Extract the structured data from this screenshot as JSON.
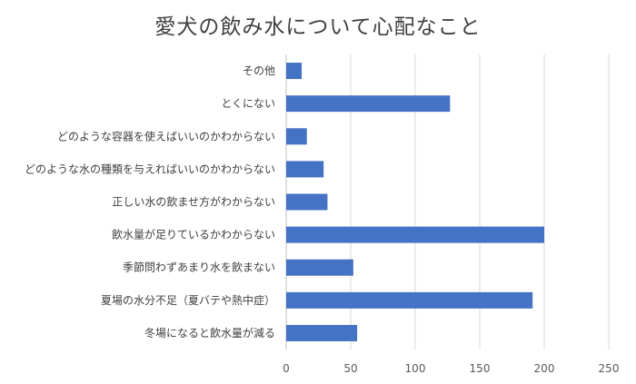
{
  "chart_data": {
    "type": "bar",
    "orientation": "horizontal",
    "title": "愛犬の飲み水について心配なこと",
    "categories": [
      "その他",
      "とくにない",
      "どのような容器を使えばいいのかわからない",
      "どのような水の種類を与えればいいのかわからない",
      "正しい水の飲ませ方がわからない",
      "飲水量が足りているかわからない",
      "季節問わずあまり水を飲まない",
      "夏場の水分不足（夏バテや熱中症）",
      "冬場になると飲水量が減る"
    ],
    "values": [
      12,
      127,
      16,
      29,
      32,
      200,
      52,
      191,
      55
    ],
    "xlim": [
      0,
      250
    ],
    "xticks": [
      "0",
      "50",
      "100",
      "150",
      "200",
      "250"
    ],
    "grid": true,
    "bar_color": "#4472C4"
  }
}
